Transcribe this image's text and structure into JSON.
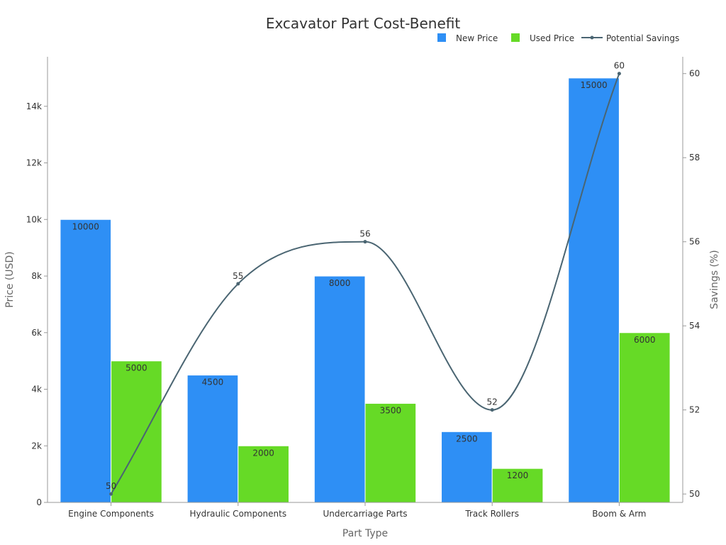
{
  "chart_data": {
    "type": "bar",
    "title": "Excavator Part Cost-Benefit",
    "xlabel": "Part Type",
    "ylabel": "Price (USD)",
    "y2label": "Savings (%)",
    "categories": [
      "Engine Components",
      "Hydraulic Components",
      "Undercarriage Parts",
      "Track Rollers",
      "Boom & Arm"
    ],
    "ylim": [
      0,
      15750
    ],
    "y_ticks": [
      0,
      2000,
      4000,
      6000,
      8000,
      10000,
      12000,
      14000
    ],
    "y_tick_labels": [
      "0",
      "2k",
      "4k",
      "6k",
      "8k",
      "10k",
      "12k",
      "14k"
    ],
    "y2lim": [
      49.8,
      60.4
    ],
    "y2_ticks": [
      50,
      52,
      54,
      56,
      58,
      60
    ],
    "y2_tick_labels": [
      "50",
      "52",
      "54",
      "56",
      "58",
      "60"
    ],
    "legend_position": "top-right",
    "series": [
      {
        "name": "New Price",
        "type": "bar",
        "axis": "left",
        "color": "#2e8ff5",
        "values": [
          10000,
          4500,
          8000,
          2500,
          15000
        ],
        "labels": [
          "10000",
          "4500",
          "8000",
          "2500",
          "15000"
        ]
      },
      {
        "name": "Used Price",
        "type": "bar",
        "axis": "left",
        "color": "#66da26",
        "values": [
          5000,
          2000,
          3500,
          1200,
          6000
        ],
        "labels": [
          "5000",
          "2000",
          "3500",
          "1200",
          "6000"
        ]
      },
      {
        "name": "Potential Savings",
        "type": "line",
        "axis": "right",
        "color": "#4a6572",
        "smooth": true,
        "values": [
          50,
          55,
          56,
          52,
          60
        ],
        "labels": [
          "50",
          "55",
          "56",
          "52",
          "60"
        ]
      }
    ]
  }
}
